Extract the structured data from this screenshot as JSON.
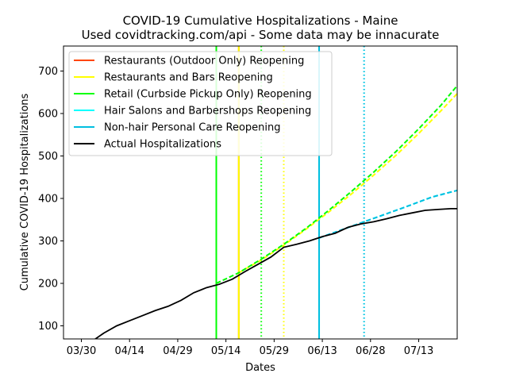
{
  "chart_data": {
    "type": "line",
    "title": "COVID-19 Cumulative Hospitalizations - Maine",
    "subtitle": "Used covidtracking.com/api - Some data may be innacurate",
    "xlabel": "Dates",
    "ylabel": "Cumulative COVID-19 Hospitalizations",
    "x_ticks": [
      "03/30",
      "04/14",
      "04/29",
      "05/14",
      "05/29",
      "06/13",
      "06/28",
      "07/13"
    ],
    "y_ticks": [
      100,
      200,
      300,
      400,
      500,
      600,
      700
    ],
    "legend_position": "top-left",
    "series": [
      {
        "name": "Restaurants (Outdoor Only) Reopening",
        "color": "#ff4500",
        "marker_date": "05/18",
        "projection": []
      },
      {
        "name": "Restaurants and Bars Reopening",
        "color": "#ffff00",
        "marker_date": "05/18",
        "reference_date": "06/01",
        "projection": [
          {
            "x": "05/18",
            "y": 225
          },
          {
            "x": "05/25",
            "y": 255
          },
          {
            "x": "06/01",
            "y": 290
          },
          {
            "x": "06/08",
            "y": 328
          },
          {
            "x": "06/15",
            "y": 368
          },
          {
            "x": "06/22",
            "y": 410
          },
          {
            "x": "06/29",
            "y": 455
          },
          {
            "x": "07/06",
            "y": 502
          },
          {
            "x": "07/13",
            "y": 553
          },
          {
            "x": "07/20",
            "y": 607
          },
          {
            "x": "07/26",
            "y": 655
          }
        ]
      },
      {
        "name": "Retail (Curbside Pickup Only) Reopening",
        "color": "#00ff00",
        "marker_date": "05/11",
        "reference_date": "05/25",
        "projection": [
          {
            "x": "05/11",
            "y": 200
          },
          {
            "x": "05/18",
            "y": 225
          },
          {
            "x": "05/25",
            "y": 257
          },
          {
            "x": "06/01",
            "y": 292
          },
          {
            "x": "06/08",
            "y": 330
          },
          {
            "x": "06/15",
            "y": 372
          },
          {
            "x": "06/22",
            "y": 416
          },
          {
            "x": "06/29",
            "y": 462
          },
          {
            "x": "07/06",
            "y": 511
          },
          {
            "x": "07/13",
            "y": 564
          },
          {
            "x": "07/20",
            "y": 620
          },
          {
            "x": "07/26",
            "y": 675
          }
        ]
      },
      {
        "name": "Hair Salons and Barbershops Reopening",
        "color": "#00ffff",
        "marker_date": "06/12",
        "reference_date": "06/26",
        "projection": [
          {
            "x": "06/12",
            "y": 307
          },
          {
            "x": "06/19",
            "y": 326
          },
          {
            "x": "06/26",
            "y": 345
          },
          {
            "x": "07/03",
            "y": 364
          },
          {
            "x": "07/10",
            "y": 383
          },
          {
            "x": "07/17",
            "y": 403
          },
          {
            "x": "07/26",
            "y": 421
          }
        ]
      },
      {
        "name": "Non-hair Personal Care Reopening",
        "color": "#00bfe0",
        "marker_date": "06/12",
        "reference_date": "06/26",
        "projection": [
          {
            "x": "06/12",
            "y": 307
          },
          {
            "x": "06/19",
            "y": 326
          },
          {
            "x": "06/26",
            "y": 345
          },
          {
            "x": "07/03",
            "y": 364
          },
          {
            "x": "07/10",
            "y": 383
          },
          {
            "x": "07/17",
            "y": 403
          },
          {
            "x": "07/26",
            "y": 421
          }
        ]
      },
      {
        "name": "Actual Hospitalizations",
        "color": "#000000",
        "points": [
          {
            "x": "03/30",
            "y": 49
          },
          {
            "x": "04/02",
            "y": 62
          },
          {
            "x": "04/06",
            "y": 83
          },
          {
            "x": "04/10",
            "y": 100
          },
          {
            "x": "04/14",
            "y": 112
          },
          {
            "x": "04/18",
            "y": 124
          },
          {
            "x": "04/22",
            "y": 136
          },
          {
            "x": "04/26",
            "y": 146
          },
          {
            "x": "04/30",
            "y": 160
          },
          {
            "x": "05/04",
            "y": 178
          },
          {
            "x": "05/08",
            "y": 190
          },
          {
            "x": "05/12",
            "y": 198
          },
          {
            "x": "05/16",
            "y": 210
          },
          {
            "x": "05/20",
            "y": 228
          },
          {
            "x": "05/24",
            "y": 245
          },
          {
            "x": "05/28",
            "y": 262
          },
          {
            "x": "06/01",
            "y": 285
          },
          {
            "x": "06/05",
            "y": 292
          },
          {
            "x": "06/09",
            "y": 300
          },
          {
            "x": "06/13",
            "y": 310
          },
          {
            "x": "06/17",
            "y": 318
          },
          {
            "x": "06/21",
            "y": 332
          },
          {
            "x": "06/25",
            "y": 340
          },
          {
            "x": "06/29",
            "y": 345
          },
          {
            "x": "07/03",
            "y": 352
          },
          {
            "x": "07/07",
            "y": 360
          },
          {
            "x": "07/11",
            "y": 366
          },
          {
            "x": "07/15",
            "y": 372
          },
          {
            "x": "07/19",
            "y": 374
          },
          {
            "x": "07/23",
            "y": 376
          },
          {
            "x": "07/26",
            "y": 376
          }
        ]
      }
    ]
  }
}
